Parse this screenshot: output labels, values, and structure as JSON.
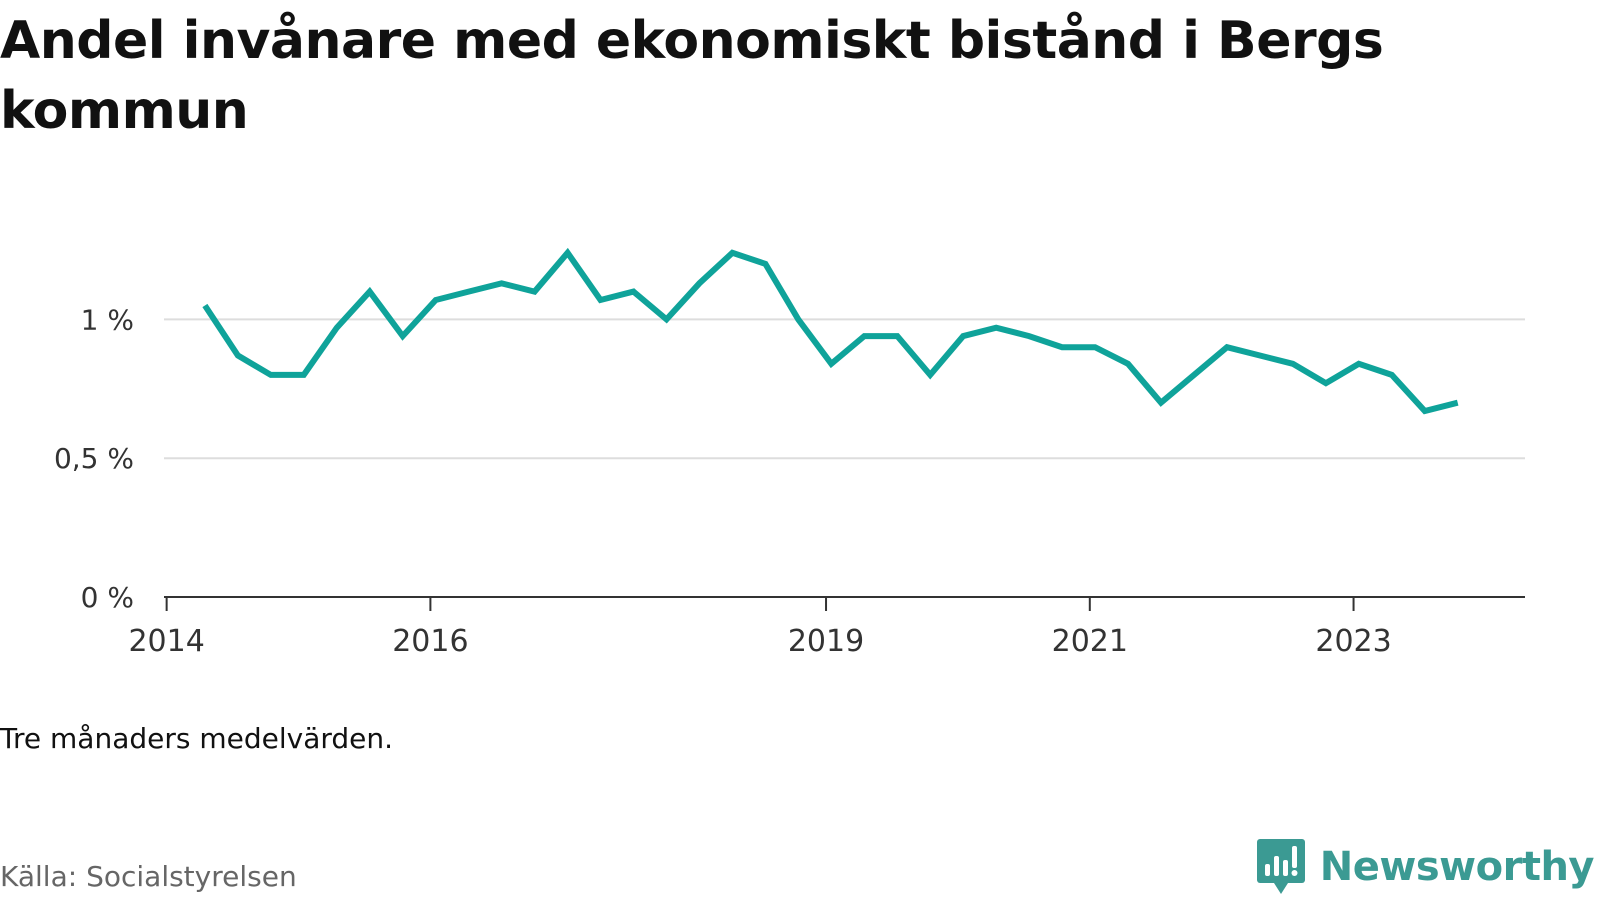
{
  "colors": {
    "line": "#0fa39a",
    "grid": "#dddddd",
    "axis": "#333333",
    "brand": "#3b9a93"
  },
  "brand_icon": "newsworthy-logo-icon",
  "footer": {
    "note": "Tre månaders medelvärden.",
    "source": "Källa: Socialstyrelsen",
    "brand": "Newsworthy"
  },
  "chart_data": {
    "type": "line",
    "title": "Andel invånare med ekonomiskt bistånd i Bergs kommun",
    "xlabel": "",
    "ylabel": "",
    "x_ticks": [
      {
        "value": 2014.0,
        "label": "2014"
      },
      {
        "value": 2016.0,
        "label": "2016"
      },
      {
        "value": 2019.0,
        "label": "2019"
      },
      {
        "value": 2021.0,
        "label": "2021"
      },
      {
        "value": 2023.0,
        "label": "2023"
      }
    ],
    "y_ticks": [
      {
        "value": 0,
        "label": "0 %"
      },
      {
        "value": 0.5,
        "label": "0,5 %"
      },
      {
        "value": 1,
        "label": "1 %"
      }
    ],
    "xlim": [
      2013.98,
      2024.3
    ],
    "ylim": [
      0,
      1.25
    ],
    "grid": "horizontal",
    "legend": "none",
    "series": [
      {
        "x": [
          2014.29,
          2014.54,
          2014.79,
          2015.04,
          2015.29,
          2015.54,
          2015.79,
          2016.04,
          2016.29,
          2016.54,
          2016.79,
          2017.04,
          2017.29,
          2017.54,
          2017.79,
          2018.04,
          2018.29,
          2018.54,
          2018.79,
          2019.04,
          2019.29,
          2019.54,
          2019.79,
          2020.04,
          2020.29,
          2020.54,
          2020.79,
          2021.04,
          2021.29,
          2021.54,
          2021.79,
          2022.04,
          2022.29,
          2022.54,
          2022.79,
          2023.04,
          2023.29,
          2023.54,
          2023.79
        ],
        "values": [
          1.05,
          0.87,
          0.8,
          0.8,
          0.97,
          1.1,
          0.94,
          1.07,
          1.1,
          1.13,
          1.1,
          1.24,
          1.07,
          1.1,
          1.0,
          1.13,
          1.24,
          1.2,
          1.0,
          0.84,
          0.94,
          0.94,
          0.8,
          0.94,
          0.97,
          0.94,
          0.9,
          0.9,
          0.84,
          0.7,
          0.8,
          0.9,
          0.87,
          0.84,
          0.77,
          0.84,
          0.8,
          0.67,
          0.7
        ]
      }
    ]
  }
}
